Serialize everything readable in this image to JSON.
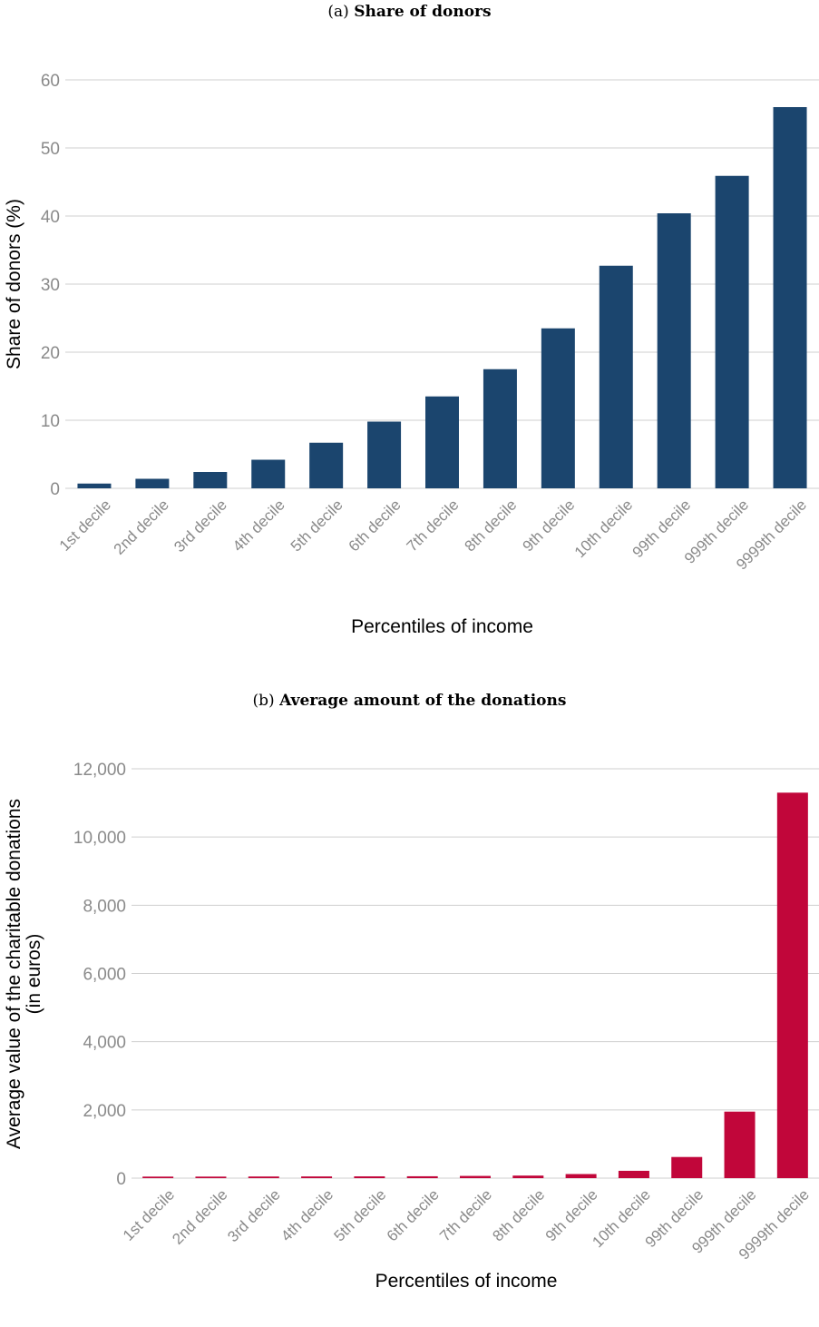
{
  "chart_data": [
    {
      "type": "bar",
      "panel_label": "(a)",
      "title": "Share of donors",
      "xlabel": "Percentiles of income",
      "ylabel": "Share of donors (%)",
      "ylim": [
        0,
        60
      ],
      "yticks": [
        0,
        10,
        20,
        30,
        40,
        50,
        60
      ],
      "ytick_labels": [
        "0",
        "10",
        "20",
        "30",
        "40",
        "50",
        "60"
      ],
      "grid": true,
      "color": "#1b456e",
      "categories": [
        "1st decile",
        "2nd decile",
        "3rd decile",
        "4th decile",
        "5th decile",
        "6th decile",
        "7th decile",
        "8th decile",
        "9th decile",
        "10th decile",
        "99th decile",
        "999th decile",
        "9999th decile"
      ],
      "values": [
        0.7,
        1.4,
        2.4,
        4.2,
        6.7,
        9.8,
        13.5,
        17.5,
        23.5,
        32.7,
        40.4,
        45.9,
        56.0
      ]
    },
    {
      "type": "bar",
      "panel_label": "(b)",
      "title": "Average amount of the donations",
      "xlabel": "Percentiles of income",
      "ylabel": [
        "Average value of the charitable donations",
        "(in euros)"
      ],
      "ylim": [
        0,
        12000
      ],
      "yticks": [
        0,
        2000,
        4000,
        6000,
        8000,
        10000,
        12000
      ],
      "ytick_labels": [
        "0",
        "2,000",
        "4,000",
        "6,000",
        "8,000",
        "10,000",
        "12,000"
      ],
      "grid": true,
      "color": "#c1063a",
      "categories": [
        "1st decile",
        "2nd decile",
        "3rd decile",
        "4th decile",
        "5th decile",
        "6th decile",
        "7th decile",
        "8th decile",
        "9th decile",
        "10th decile",
        "99th decile",
        "999th decile",
        "9999th decile"
      ],
      "values": [
        45,
        45,
        48,
        50,
        52,
        55,
        65,
        75,
        120,
        215,
        620,
        1950,
        11300
      ]
    }
  ]
}
